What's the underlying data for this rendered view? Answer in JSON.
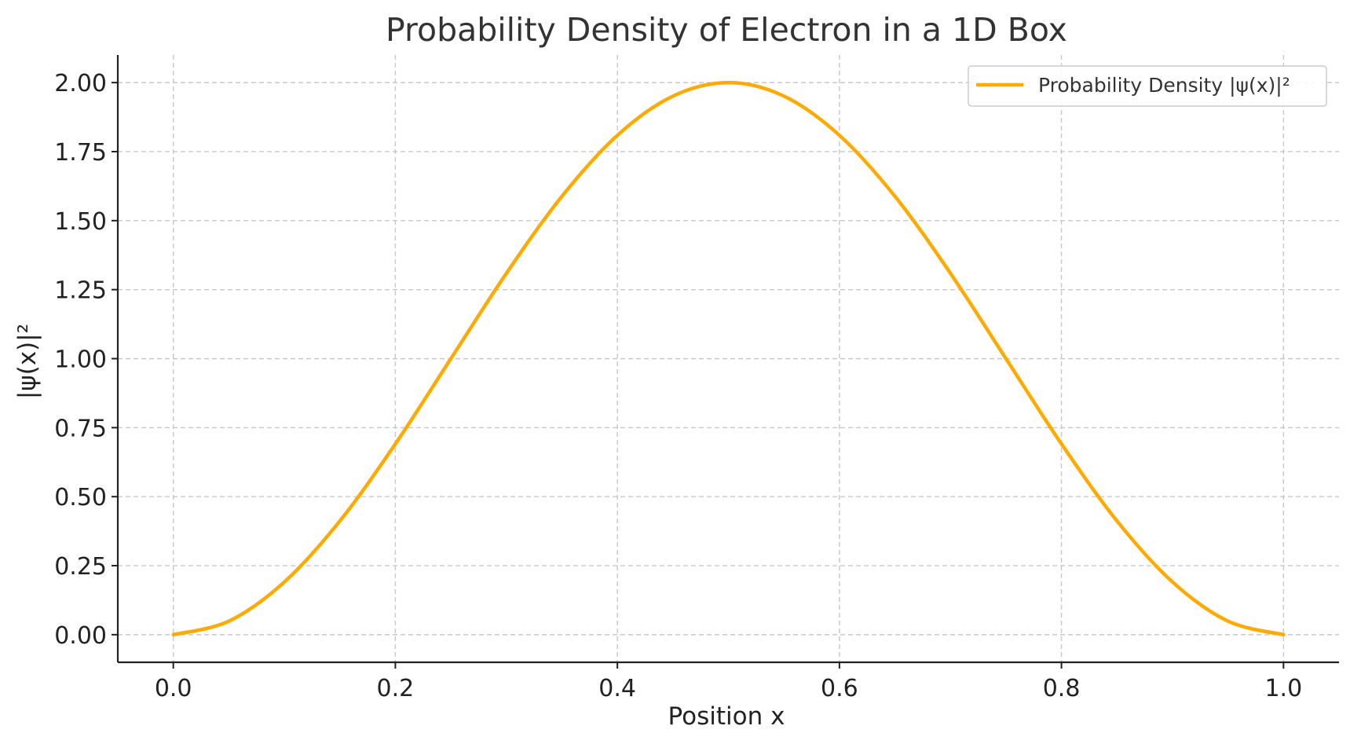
{
  "chart_data": {
    "type": "line",
    "title": "Probability Density of Electron in a 1D Box",
    "xlabel": "Position x",
    "ylabel": "|ψ(x)|²",
    "xlim": [
      -0.05,
      1.05
    ],
    "ylim": [
      -0.1,
      2.1
    ],
    "x_ticks": [
      0.0,
      0.2,
      0.4,
      0.6,
      0.8,
      1.0
    ],
    "x_tick_labels": [
      "0.0",
      "0.2",
      "0.4",
      "0.6",
      "0.8",
      "1.0"
    ],
    "y_ticks": [
      0.0,
      0.25,
      0.5,
      0.75,
      1.0,
      1.25,
      1.5,
      1.75,
      2.0
    ],
    "y_tick_labels": [
      "0.00",
      "0.25",
      "0.50",
      "0.75",
      "1.00",
      "1.25",
      "1.50",
      "1.75",
      "2.00"
    ],
    "grid": true,
    "legend_position": "top-right",
    "series": [
      {
        "name": "Probability Density |ψ(x)|²",
        "color": "#FFAA00",
        "x": [
          0.0,
          0.05,
          0.1,
          0.15,
          0.2,
          0.25,
          0.3,
          0.35,
          0.4,
          0.45,
          0.5,
          0.55,
          0.6,
          0.65,
          0.7,
          0.75,
          0.8,
          0.85,
          0.9,
          0.95,
          1.0
        ],
        "y": [
          0.0,
          0.049,
          0.191,
          0.412,
          0.691,
          1.0,
          1.309,
          1.588,
          1.809,
          1.951,
          2.0,
          1.951,
          1.809,
          1.588,
          1.309,
          1.0,
          0.691,
          0.412,
          0.191,
          0.049,
          0.0
        ]
      }
    ]
  }
}
